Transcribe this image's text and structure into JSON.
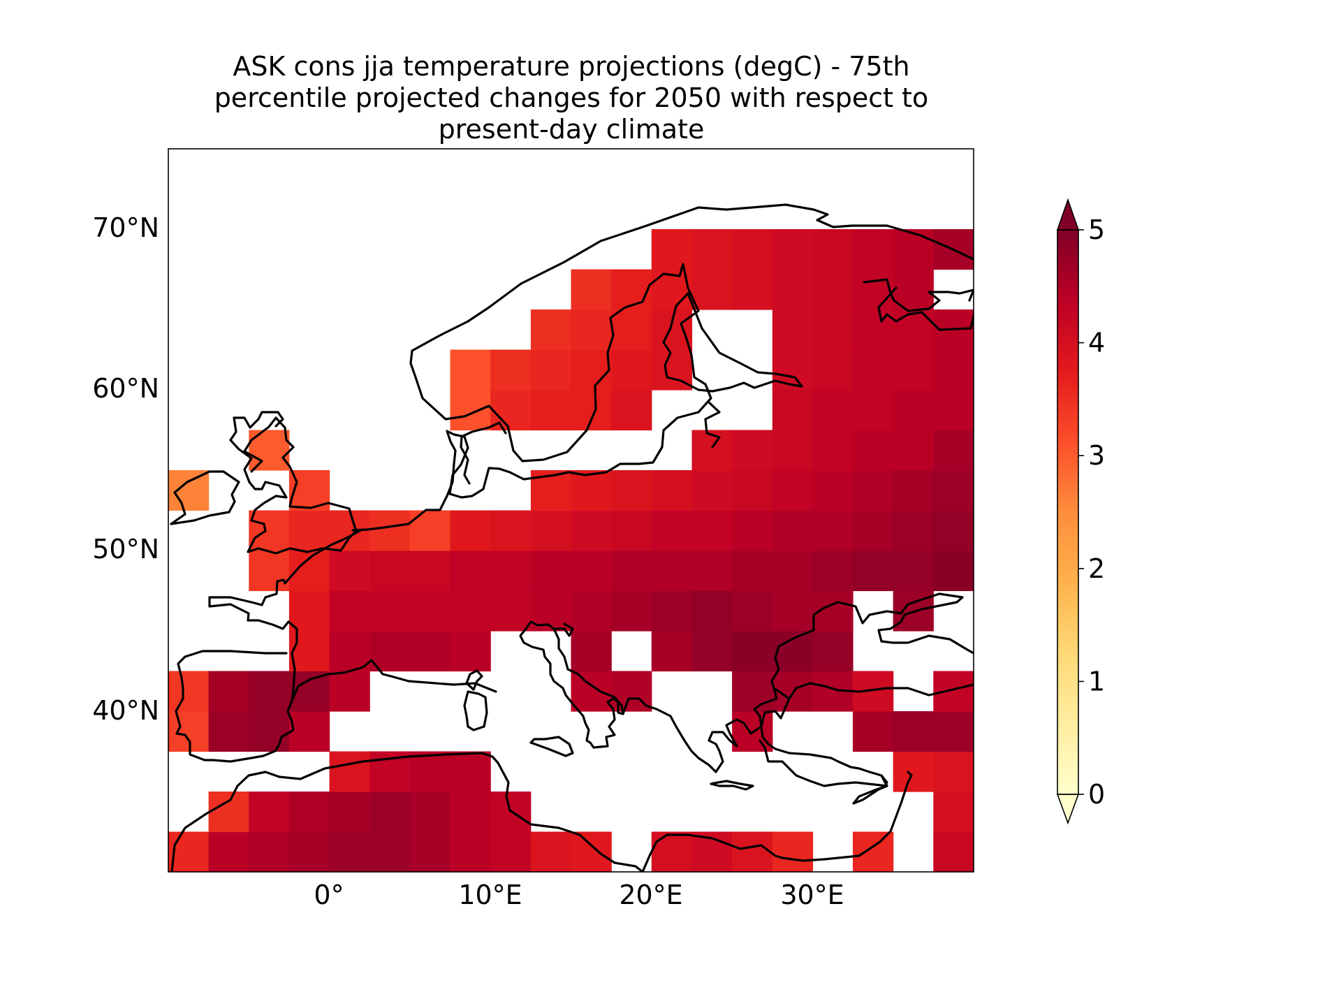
{
  "title_lines": [
    "ASK cons jja temperature projections (degC) - 75th",
    "percentile projected changes for 2050 with respect to",
    "present-day climate"
  ],
  "colorbar": {
    "ticks": [
      "0",
      "1",
      "2",
      "3",
      "4",
      "5"
    ],
    "extend": "both",
    "colormap": "YlOrRd",
    "colors": [
      "#ffffcc",
      "#ffeda0",
      "#fed976",
      "#feb24c",
      "#fd8d3c",
      "#fc4e2a",
      "#e31a1c",
      "#bd0026",
      "#800026"
    ]
  },
  "axes": {
    "lat_labels": [
      "40°N",
      "50°N",
      "60°N",
      "70°N"
    ],
    "lon_labels": [
      "0°",
      "10°E",
      "20°E",
      "30°E"
    ]
  },
  "chart_data": {
    "type": "heatmap",
    "units": "degC",
    "lon_range": [
      -10,
      40
    ],
    "lat_range": [
      30,
      75
    ],
    "vmin": 0,
    "vmax": 5,
    "cell_size_deg": [
      2.5,
      2.5
    ],
    "rows": [
      {
        "lat": 30.0,
        "lon0": -10,
        "values": [
          3.6,
          4.4,
          4.5,
          4.6,
          4.7,
          4.7,
          4.6,
          4.4,
          4.3,
          3.9,
          3.8,
          null,
          4.0,
          4.1,
          3.9,
          3.6,
          null,
          3.6,
          null,
          4.2,
          4.5
        ]
      },
      {
        "lat": 32.5,
        "lon0": -10,
        "values": [
          null,
          3.5,
          4.3,
          4.5,
          4.6,
          4.7,
          4.6,
          4.4,
          4.3,
          null,
          null,
          null,
          null,
          null,
          null,
          null,
          null,
          null,
          null,
          4.0,
          4.4
        ]
      },
      {
        "lat": 35.0,
        "lon0": -10,
        "values": [
          null,
          null,
          null,
          null,
          3.9,
          4.3,
          4.4,
          4.4,
          null,
          null,
          null,
          null,
          null,
          null,
          null,
          null,
          null,
          null,
          3.8,
          3.9,
          4.6
        ]
      },
      {
        "lat": 37.5,
        "lon0": -10,
        "values": [
          3.3,
          4.7,
          4.8,
          4.4,
          null,
          null,
          null,
          null,
          null,
          null,
          null,
          null,
          null,
          null,
          4.4,
          null,
          null,
          4.6,
          4.7,
          4.7,
          4.8
        ]
      },
      {
        "lat": 40.0,
        "lon0": -10,
        "values": [
          3.4,
          4.6,
          4.8,
          4.8,
          4.4,
          null,
          null,
          null,
          null,
          null,
          4.4,
          4.5,
          null,
          null,
          4.7,
          4.6,
          4.5,
          4.1,
          null,
          4.3,
          4.4
        ]
      },
      {
        "lat": 42.5,
        "lon0": -10,
        "values": [
          null,
          null,
          null,
          3.8,
          4.4,
          4.5,
          4.5,
          4.4,
          null,
          null,
          4.6,
          null,
          4.6,
          4.8,
          4.9,
          4.9,
          4.8,
          null,
          null,
          null,
          null
        ]
      },
      {
        "lat": 45.0,
        "lon0": -10,
        "values": [
          null,
          null,
          null,
          3.8,
          4.3,
          4.3,
          4.3,
          4.3,
          4.3,
          4.4,
          4.5,
          4.6,
          4.7,
          4.8,
          4.7,
          4.6,
          4.6,
          null,
          4.7,
          null,
          4.6
        ]
      },
      {
        "lat": 47.5,
        "lon0": -10,
        "values": [
          null,
          null,
          3.4,
          3.7,
          4.1,
          4.2,
          4.2,
          4.3,
          4.3,
          4.4,
          4.4,
          4.5,
          4.5,
          4.5,
          4.6,
          4.6,
          4.7,
          4.8,
          4.8,
          4.9,
          5.0
        ]
      },
      {
        "lat": 50.0,
        "lon0": -10,
        "values": [
          null,
          null,
          3.4,
          3.6,
          3.6,
          3.5,
          3.3,
          3.8,
          3.9,
          4.0,
          4.1,
          4.2,
          4.3,
          4.3,
          4.4,
          4.5,
          4.5,
          4.6,
          4.7,
          4.8,
          5.0
        ]
      },
      {
        "lat": 52.5,
        "lon0": -10,
        "values": [
          2.6,
          null,
          null,
          3.3,
          null,
          null,
          null,
          null,
          null,
          3.7,
          3.8,
          3.9,
          4.0,
          4.1,
          4.2,
          4.3,
          4.4,
          4.5,
          4.6,
          4.7,
          4.9
        ]
      },
      {
        "lat": 55.0,
        "lon0": -10,
        "values": [
          null,
          null,
          3.0,
          null,
          null,
          null,
          null,
          null,
          null,
          null,
          null,
          null,
          null,
          4.0,
          4.1,
          4.2,
          4.3,
          4.4,
          4.4,
          4.6,
          4.7
        ]
      },
      {
        "lat": 57.5,
        "lon0": -10,
        "values": [
          null,
          null,
          null,
          null,
          null,
          null,
          null,
          3.1,
          3.6,
          3.7,
          3.7,
          3.9,
          null,
          null,
          null,
          4.2,
          4.3,
          4.3,
          4.4,
          4.4,
          4.5
        ]
      },
      {
        "lat": 60.0,
        "lon0": -10,
        "values": [
          null,
          null,
          null,
          null,
          null,
          null,
          null,
          3.1,
          3.5,
          3.6,
          3.7,
          3.8,
          3.9,
          null,
          null,
          4.1,
          4.2,
          4.3,
          4.3,
          4.4,
          4.5
        ]
      },
      {
        "lat": 62.5,
        "lon0": -10,
        "values": [
          null,
          null,
          null,
          null,
          null,
          null,
          null,
          null,
          null,
          3.5,
          3.6,
          3.7,
          3.9,
          null,
          null,
          4.1,
          4.2,
          4.3,
          4.3,
          4.4,
          4.5
        ]
      },
      {
        "lat": 65.0,
        "lon0": -10,
        "values": [
          null,
          null,
          null,
          null,
          null,
          null,
          null,
          null,
          null,
          null,
          3.5,
          3.7,
          3.8,
          3.9,
          4.0,
          4.1,
          4.2,
          4.3,
          4.4,
          null,
          4.6
        ]
      },
      {
        "lat": 67.5,
        "lon0": -10,
        "values": [
          null,
          null,
          null,
          null,
          null,
          null,
          null,
          null,
          null,
          null,
          null,
          null,
          3.8,
          3.9,
          4.0,
          4.1,
          4.2,
          4.3,
          4.4,
          4.6,
          null
        ]
      }
    ]
  }
}
